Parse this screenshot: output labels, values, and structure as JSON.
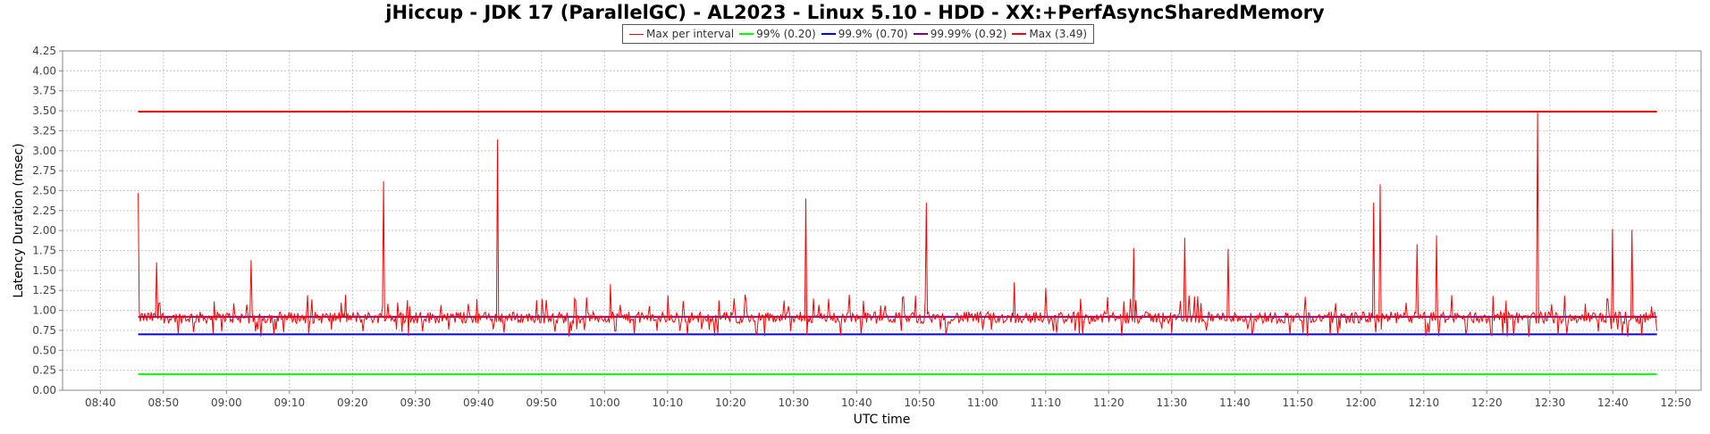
{
  "chart_data": {
    "type": "line",
    "title": "jHiccup - JDK 17 (ParallelGC) - AL2023 - Linux 5.10 - HDD - XX:+PerfAsyncSharedMemory",
    "xlabel": "UTC time",
    "ylabel": "Latency Duration (msec)",
    "ylim": [
      0,
      4.25
    ],
    "y_ticks": [
      "0.00",
      "0.25",
      "0.50",
      "0.75",
      "1.00",
      "1.25",
      "1.50",
      "1.75",
      "2.00",
      "2.25",
      "2.50",
      "2.75",
      "3.00",
      "3.25",
      "3.50",
      "3.75",
      "4.00",
      "4.25"
    ],
    "x_ticks": [
      "08:40",
      "08:50",
      "09:00",
      "09:10",
      "09:20",
      "09:30",
      "09:40",
      "09:50",
      "10:00",
      "10:10",
      "10:20",
      "10:30",
      "10:40",
      "10:50",
      "11:00",
      "11:10",
      "11:20",
      "11:30",
      "11:40",
      "11:50",
      "12:00",
      "12:10",
      "12:20",
      "12:30",
      "12:40",
      "12:50"
    ],
    "x_range": [
      "08:34",
      "12:54"
    ],
    "series_x_range": [
      "08:46",
      "12:47"
    ],
    "grid": true,
    "legend_position": "top-center",
    "series": [
      {
        "name": "Max per interval",
        "color": "#ff0000",
        "kind": "noisy",
        "baseline_band": [
          0.72,
          1.05
        ],
        "spikes": [
          {
            "x": "08:46",
            "y": 2.47
          },
          {
            "x": "08:49",
            "y": 1.6
          },
          {
            "x": "09:04",
            "y": 1.63
          },
          {
            "x": "09:25",
            "y": 2.62
          },
          {
            "x": "09:43",
            "y": 3.14
          },
          {
            "x": "10:01",
            "y": 1.33
          },
          {
            "x": "10:32",
            "y": 2.4
          },
          {
            "x": "10:51",
            "y": 2.35
          },
          {
            "x": "11:05",
            "y": 1.35
          },
          {
            "x": "11:10",
            "y": 1.28
          },
          {
            "x": "11:24",
            "y": 1.78
          },
          {
            "x": "11:32",
            "y": 1.91
          },
          {
            "x": "11:39",
            "y": 1.77
          },
          {
            "x": "12:02",
            "y": 2.35
          },
          {
            "x": "12:03",
            "y": 2.58
          },
          {
            "x": "12:09",
            "y": 1.83
          },
          {
            "x": "12:12",
            "y": 1.94
          },
          {
            "x": "12:28",
            "y": 3.49
          },
          {
            "x": "12:40",
            "y": 2.02
          },
          {
            "x": "12:43",
            "y": 2.01
          }
        ]
      },
      {
        "name": "99% (0.20)",
        "color": "#00ff00",
        "value": 0.2
      },
      {
        "name": "99.9% (0.70)",
        "color": "#0000ff",
        "value": 0.7
      },
      {
        "name": "99.99% (0.92)",
        "color": "#800080",
        "value": 0.92
      },
      {
        "name": "Max (3.49)",
        "color": "#ff0000",
        "value": 3.49
      }
    ]
  }
}
